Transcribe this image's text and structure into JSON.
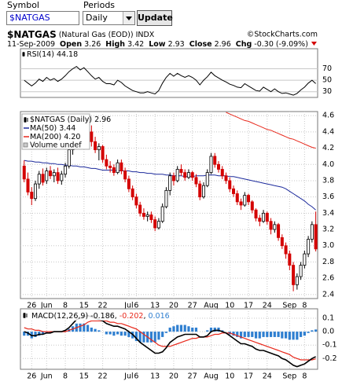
{
  "form": {
    "symbol_label": "Symbol",
    "symbol_value": "$NATGAS",
    "periods_label": "Periods",
    "periods_value": "Daily",
    "button": "Update"
  },
  "header": {
    "symbol": "$NATGAS",
    "name": "(Natural Gas (EOD))",
    "exchange": "INDX",
    "source": "©StockCharts.com",
    "date": "11-Sep-2009",
    "quote": [
      {
        "label": "Open",
        "value": "3.26"
      },
      {
        "label": "High",
        "value": "3.42"
      },
      {
        "label": "Low",
        "value": "2.93"
      },
      {
        "label": "Close",
        "value": "2.96"
      },
      {
        "label": "Chg",
        "value": "-0.30 (-9.09%)"
      }
    ]
  },
  "chart_data": [
    {
      "type": "candlestick",
      "name": "$NATGAS (Daily)",
      "up_color": "#000000",
      "down_color": "#d40000",
      "note": "Volume undef",
      "grid": true,
      "xlim": [
        -1,
        78.5
      ],
      "ylim": [
        2.35,
        4.65
      ],
      "yticks": [
        2.4,
        2.6,
        2.8,
        {
          "value": 3,
          "label": "3.0"
        },
        3.2,
        3.4,
        3.6,
        3.8,
        {
          "value": 4,
          "label": "4.0"
        },
        4.2,
        4.4,
        4.6
      ],
      "xticks": [
        {
          "value": 2,
          "label": "26"
        },
        {
          "value": 6,
          "label": "Jun"
        },
        {
          "value": 11,
          "label": "8"
        },
        {
          "value": 16,
          "label": "15"
        },
        {
          "value": 21,
          "label": "22"
        },
        {
          "value": 28,
          "label": "Jul"
        },
        {
          "value": 30,
          "label": "6"
        },
        {
          "value": 35,
          "label": "13"
        },
        {
          "value": 40,
          "label": "20"
        },
        {
          "value": 45,
          "label": "27"
        },
        {
          "value": 50,
          "label": "Aug"
        },
        {
          "value": 55,
          "label": "10"
        },
        {
          "value": 60,
          "label": "17"
        },
        {
          "value": 65,
          "label": "24"
        },
        {
          "value": 71,
          "label": "Sep"
        },
        {
          "value": 75,
          "label": "8"
        }
      ],
      "candles": [
        [
          3.98,
          4.05,
          3.78,
          3.82
        ],
        [
          3.82,
          3.9,
          3.62,
          3.66
        ],
        [
          3.66,
          3.72,
          3.5,
          3.58
        ],
        [
          3.58,
          3.8,
          3.55,
          3.76
        ],
        [
          3.76,
          3.92,
          3.7,
          3.88
        ],
        [
          3.88,
          3.95,
          3.74,
          3.78
        ],
        [
          3.8,
          3.96,
          3.76,
          3.92
        ],
        [
          3.92,
          3.98,
          3.82,
          3.86
        ],
        [
          3.86,
          3.94,
          3.78,
          3.9
        ],
        [
          3.9,
          3.96,
          3.76,
          3.8
        ],
        [
          3.8,
          3.92,
          3.75,
          3.88
        ],
        [
          3.88,
          4.02,
          3.84,
          3.98
        ],
        [
          3.98,
          4.22,
          3.95,
          4.18
        ],
        [
          4.18,
          4.36,
          4.12,
          4.3
        ],
        [
          4.3,
          4.46,
          4.24,
          4.42
        ],
        [
          4.42,
          4.5,
          4.3,
          4.36
        ],
        [
          4.36,
          4.52,
          4.32,
          4.48
        ],
        [
          4.48,
          4.55,
          4.34,
          4.4
        ],
        [
          4.4,
          4.48,
          4.22,
          4.28
        ],
        [
          4.28,
          4.34,
          4.14,
          4.18
        ],
        [
          4.18,
          4.26,
          4.05,
          4.22
        ],
        [
          4.22,
          4.24,
          4.02,
          4.06
        ],
        [
          4.06,
          4.12,
          3.94,
          3.98
        ],
        [
          3.98,
          4.04,
          3.9,
          3.96
        ],
        [
          3.96,
          4.0,
          3.86,
          3.9
        ],
        [
          3.9,
          4.06,
          3.88,
          4.02
        ],
        [
          4.02,
          4.06,
          3.88,
          3.92
        ],
        [
          3.92,
          3.96,
          3.78,
          3.82
        ],
        [
          3.82,
          3.86,
          3.66,
          3.7
        ],
        [
          3.7,
          3.74,
          3.56,
          3.6
        ],
        [
          3.6,
          3.64,
          3.46,
          3.5
        ],
        [
          3.5,
          3.54,
          3.36,
          3.4
        ],
        [
          3.4,
          3.46,
          3.32,
          3.36
        ],
        [
          3.36,
          3.42,
          3.3,
          3.38
        ],
        [
          3.38,
          3.42,
          3.28,
          3.32
        ],
        [
          3.32,
          3.36,
          3.18,
          3.22
        ],
        [
          3.22,
          3.34,
          3.2,
          3.3
        ],
        [
          3.3,
          3.52,
          3.28,
          3.48
        ],
        [
          3.48,
          3.72,
          3.46,
          3.68
        ],
        [
          3.68,
          3.9,
          3.62,
          3.86
        ],
        [
          3.86,
          3.9,
          3.74,
          3.8
        ],
        [
          3.8,
          3.98,
          3.78,
          3.94
        ],
        [
          3.94,
          4.0,
          3.86,
          3.9
        ],
        [
          3.9,
          3.94,
          3.8,
          3.84
        ],
        [
          3.84,
          3.94,
          3.82,
          3.9
        ],
        [
          3.9,
          3.92,
          3.8,
          3.84
        ],
        [
          3.84,
          3.88,
          3.72,
          3.76
        ],
        [
          3.76,
          3.8,
          3.56,
          3.6
        ],
        [
          3.6,
          3.78,
          3.58,
          3.74
        ],
        [
          3.74,
          3.94,
          3.72,
          3.9
        ],
        [
          3.9,
          4.14,
          3.88,
          4.1
        ],
        [
          4.1,
          4.14,
          3.96,
          4.0
        ],
        [
          4.0,
          4.04,
          3.9,
          3.94
        ],
        [
          3.94,
          3.98,
          3.82,
          3.86
        ],
        [
          3.86,
          3.9,
          3.76,
          3.8
        ],
        [
          3.8,
          3.84,
          3.66,
          3.7
        ],
        [
          3.7,
          3.74,
          3.6,
          3.64
        ],
        [
          3.64,
          3.68,
          3.5,
          3.54
        ],
        [
          3.54,
          3.58,
          3.44,
          3.5
        ],
        [
          3.5,
          3.66,
          3.48,
          3.62
        ],
        [
          3.62,
          3.64,
          3.5,
          3.54
        ],
        [
          3.54,
          3.56,
          3.4,
          3.44
        ],
        [
          3.44,
          3.46,
          3.3,
          3.34
        ],
        [
          3.34,
          3.38,
          3.24,
          3.3
        ],
        [
          3.3,
          3.44,
          3.28,
          3.4
        ],
        [
          3.4,
          3.42,
          3.26,
          3.3
        ],
        [
          3.3,
          3.34,
          3.14,
          3.2
        ],
        [
          3.2,
          3.3,
          3.16,
          3.26
        ],
        [
          3.26,
          3.28,
          3.06,
          3.1
        ],
        [
          3.1,
          3.14,
          2.96,
          3.0
        ],
        [
          3.0,
          3.04,
          2.84,
          2.9
        ],
        [
          2.9,
          2.94,
          2.7,
          2.76
        ],
        [
          2.76,
          2.8,
          2.44,
          2.52
        ],
        [
          2.52,
          2.66,
          2.46,
          2.62
        ],
        [
          2.62,
          2.8,
          2.58,
          2.76
        ],
        [
          2.76,
          2.94,
          2.72,
          2.9
        ],
        [
          2.9,
          3.12,
          2.86,
          3.08
        ],
        [
          3.08,
          3.3,
          3.04,
          3.26
        ],
        [
          3.26,
          3.42,
          2.93,
          2.96
        ]
      ],
      "series": [
        {
          "name": "MA(50)",
          "color": "#1c2a9c",
          "values": [
            4.05,
            4.04,
            4.04,
            4.03,
            4.03,
            4.02,
            4.02,
            4.01,
            4.01,
            4.0,
            4.0,
            3.99,
            3.99,
            3.98,
            3.98,
            3.97,
            3.97,
            3.96,
            3.95,
            3.95,
            3.94,
            3.93,
            3.93,
            3.93,
            3.93,
            3.92,
            3.92,
            3.92,
            3.92,
            3.91,
            3.91,
            3.9,
            3.9,
            3.89,
            3.89,
            3.88,
            3.88,
            3.88,
            3.87,
            3.87,
            3.86,
            3.86,
            3.86,
            3.85,
            3.85,
            3.85,
            3.86,
            3.86,
            3.86,
            3.87,
            3.87,
            3.87,
            3.86,
            3.86,
            3.86,
            3.85,
            3.85,
            3.84,
            3.83,
            3.82,
            3.81,
            3.8,
            3.79,
            3.78,
            3.77,
            3.76,
            3.75,
            3.74,
            3.73,
            3.72,
            3.7,
            3.67,
            3.64,
            3.61,
            3.58,
            3.55,
            3.51,
            3.48,
            3.44
          ]
        },
        {
          "name": "MA(200)",
          "color": "#e8291c",
          "legend_value": "4.20",
          "values": [
            null,
            null,
            null,
            null,
            null,
            null,
            null,
            null,
            null,
            null,
            null,
            null,
            null,
            null,
            null,
            null,
            null,
            null,
            null,
            null,
            null,
            null,
            null,
            null,
            null,
            null,
            null,
            null,
            null,
            null,
            null,
            null,
            null,
            null,
            null,
            null,
            null,
            null,
            null,
            null,
            null,
            null,
            null,
            null,
            null,
            null,
            null,
            null,
            null,
            null,
            null,
            null,
            null,
            null,
            4.64,
            4.62,
            4.6,
            4.58,
            4.56,
            4.54,
            4.53,
            4.51,
            4.49,
            4.47,
            4.45,
            4.43,
            4.42,
            4.4,
            4.38,
            4.36,
            4.34,
            4.32,
            4.31,
            4.29,
            4.27,
            4.25,
            4.23,
            4.21,
            4.2
          ]
        }
      ]
    },
    {
      "type": "line",
      "name": "RSI(14)",
      "color": "#000000",
      "xlim": [
        -1,
        78.5
      ],
      "ylim": [
        20,
        105
      ],
      "yticks": [
        30,
        50,
        70
      ],
      "values": [
        50,
        45,
        40,
        45,
        52,
        48,
        55,
        50,
        53,
        48,
        52,
        58,
        65,
        70,
        74,
        68,
        72,
        65,
        58,
        52,
        55,
        48,
        44,
        44,
        42,
        50,
        46,
        40,
        36,
        32,
        30,
        28,
        28,
        30,
        28,
        26,
        32,
        45,
        55,
        62,
        57,
        62,
        58,
        55,
        58,
        55,
        50,
        42,
        50,
        56,
        64,
        58,
        54,
        50,
        47,
        43,
        41,
        38,
        37,
        44,
        40,
        36,
        32,
        31,
        38,
        34,
        30,
        35,
        30,
        27,
        28,
        26,
        24,
        27,
        33,
        38,
        45,
        50,
        44.18
      ]
    },
    {
      "type": "macd",
      "name": "MACD(12,26,9)",
      "legend_separator": ",",
      "grid": true,
      "xlim": [
        -1,
        78.5
      ],
      "ylim": [
        -0.28,
        0.17
      ],
      "yticks": [
        0.1,
        {
          "value": 0,
          "label": "0.0"
        },
        -0.1,
        -0.2
      ],
      "xticks": [
        {
          "value": 2,
          "label": "26"
        },
        {
          "value": 6,
          "label": "Jun"
        },
        {
          "value": 11,
          "label": "8"
        },
        {
          "value": 16,
          "label": "15"
        },
        {
          "value": 21,
          "label": "22"
        },
        {
          "value": 28,
          "label": "Jul"
        },
        {
          "value": 30,
          "label": "6"
        },
        {
          "value": 35,
          "label": "13"
        },
        {
          "value": 40,
          "label": "20"
        },
        {
          "value": 45,
          "label": "27"
        },
        {
          "value": 50,
          "label": "Aug"
        },
        {
          "value": 55,
          "label": "10"
        },
        {
          "value": 60,
          "label": "17"
        },
        {
          "value": 65,
          "label": "24"
        },
        {
          "value": 71,
          "label": "Sep"
        },
        {
          "value": 75,
          "label": "8"
        }
      ],
      "macd": {
        "color": "#000000",
        "values": [
          0.0,
          -0.01,
          -0.03,
          -0.03,
          -0.02,
          -0.02,
          -0.01,
          -0.01,
          0.0,
          0.0,
          0.0,
          0.01,
          0.03,
          0.06,
          0.09,
          0.1,
          0.11,
          0.12,
          0.11,
          0.1,
          0.09,
          0.08,
          0.06,
          0.05,
          0.04,
          0.04,
          0.03,
          0.02,
          0.0,
          -0.02,
          -0.05,
          -0.08,
          -0.1,
          -0.12,
          -0.14,
          -0.16,
          -0.16,
          -0.15,
          -0.12,
          -0.08,
          -0.06,
          -0.04,
          -0.03,
          -0.02,
          -0.02,
          -0.02,
          -0.02,
          -0.04,
          -0.04,
          -0.03,
          0.0,
          0.01,
          0.01,
          0.0,
          -0.01,
          -0.03,
          -0.05,
          -0.07,
          -0.09,
          -0.09,
          -0.1,
          -0.11,
          -0.13,
          -0.14,
          -0.14,
          -0.15,
          -0.16,
          -0.17,
          -0.18,
          -0.2,
          -0.21,
          -0.23,
          -0.25,
          -0.26,
          -0.25,
          -0.24,
          -0.22,
          -0.2,
          -0.186
        ]
      },
      "signal": {
        "color": "#e8291c",
        "values": [
          0.03,
          0.02,
          0.02,
          0.01,
          0.01,
          0.0,
          0.0,
          0.0,
          0.0,
          0.0,
          0.0,
          0.0,
          0.01,
          0.02,
          0.03,
          0.04,
          0.05,
          0.07,
          0.08,
          0.08,
          0.08,
          0.08,
          0.08,
          0.07,
          0.07,
          0.06,
          0.06,
          0.05,
          0.04,
          0.03,
          0.02,
          0.0,
          -0.02,
          -0.04,
          -0.06,
          -0.08,
          -0.1,
          -0.11,
          -0.11,
          -0.11,
          -0.1,
          -0.09,
          -0.08,
          -0.07,
          -0.06,
          -0.05,
          -0.05,
          -0.04,
          -0.04,
          -0.04,
          -0.03,
          -0.02,
          -0.02,
          -0.01,
          -0.01,
          -0.01,
          -0.02,
          -0.03,
          -0.04,
          -0.05,
          -0.06,
          -0.07,
          -0.08,
          -0.09,
          -0.1,
          -0.11,
          -0.12,
          -0.13,
          -0.14,
          -0.15,
          -0.16,
          -0.17,
          -0.19,
          -0.2,
          -0.21,
          -0.21,
          -0.21,
          -0.21,
          -0.202
        ]
      },
      "histogram": {
        "color": "#2f7fd0",
        "values": [
          -0.03,
          -0.03,
          -0.05,
          -0.04,
          -0.03,
          -0.02,
          -0.01,
          -0.01,
          0.0,
          0.0,
          0.0,
          0.01,
          0.02,
          0.04,
          0.06,
          0.06,
          0.06,
          0.05,
          0.03,
          0.02,
          0.01,
          0.0,
          -0.02,
          -0.02,
          -0.03,
          -0.02,
          -0.03,
          -0.03,
          -0.04,
          -0.05,
          -0.07,
          -0.08,
          -0.08,
          -0.08,
          -0.08,
          -0.08,
          -0.06,
          -0.04,
          -0.01,
          0.03,
          0.04,
          0.05,
          0.05,
          0.05,
          0.04,
          0.03,
          0.03,
          0.0,
          0.0,
          0.01,
          0.03,
          0.03,
          0.03,
          0.01,
          0.0,
          -0.02,
          -0.03,
          -0.04,
          -0.05,
          -0.04,
          -0.04,
          -0.04,
          -0.05,
          -0.05,
          -0.04,
          -0.04,
          -0.04,
          -0.04,
          -0.04,
          -0.05,
          -0.05,
          -0.06,
          -0.06,
          -0.06,
          -0.04,
          -0.03,
          -0.01,
          0.01,
          0.016
        ]
      }
    }
  ]
}
